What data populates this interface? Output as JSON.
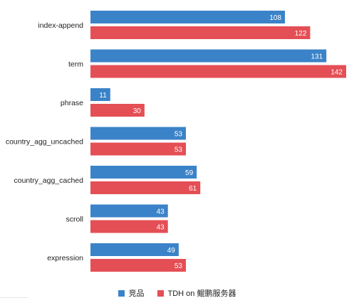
{
  "chart_data": {
    "type": "bar",
    "orientation": "horizontal",
    "categories": [
      "index-append",
      "term",
      "phrase",
      "country_agg_uncached",
      "country_agg_cached",
      "scroll",
      "expression"
    ],
    "series": [
      {
        "name": "竞品",
        "values": [
          108,
          131,
          11,
          53,
          59,
          43,
          49
        ],
        "color": "#3b83c8"
      },
      {
        "name": "TDH on 鲲鹏服务器",
        "values": [
          122,
          142,
          30,
          53,
          61,
          43,
          53
        ],
        "color": "#e44f55"
      }
    ],
    "xlim": [
      0,
      142
    ],
    "grid": false,
    "data_labels": true,
    "legend_position": "bottom"
  }
}
